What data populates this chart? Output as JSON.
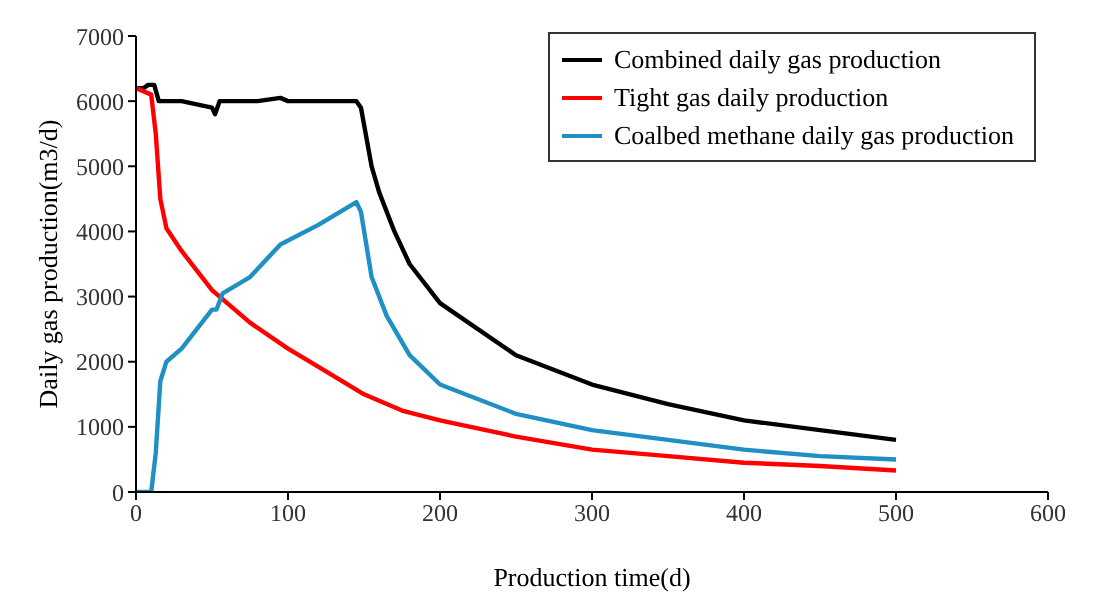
{
  "chart_data": {
    "type": "line",
    "xlabel": "Production time(d)",
    "ylabel": "Daily gas production(m3/d)",
    "xlim": [
      0,
      600
    ],
    "xticks": [
      0,
      100,
      200,
      300,
      400,
      500,
      600
    ],
    "ylim": [
      0,
      7000
    ],
    "yticks": [
      0,
      1000,
      2000,
      3000,
      4000,
      5000,
      6000,
      7000
    ],
    "grid": false,
    "legend": "top right",
    "marker": "none",
    "line_style": "solid",
    "series": [
      {
        "name": "Combined daily gas production",
        "color": "#000000",
        "x": [
          0,
          5,
          8,
          12,
          15,
          30,
          50,
          52,
          55,
          80,
          95,
          100,
          145,
          148,
          155,
          160,
          170,
          180,
          200,
          250,
          300,
          350,
          400,
          450,
          500
        ],
        "values": [
          6200,
          6200,
          6250,
          6250,
          6000,
          6000,
          5900,
          5800,
          6000,
          6000,
          6050,
          6000,
          6000,
          5900,
          5000,
          4600,
          4000,
          3500,
          2900,
          2100,
          1650,
          1350,
          1100,
          950,
          800
        ]
      },
      {
        "name": "Tight gas daily production",
        "color": "#ff0000",
        "x": [
          0,
          10,
          13,
          16,
          20,
          30,
          50,
          75,
          100,
          125,
          150,
          175,
          200,
          250,
          300,
          350,
          400,
          450,
          500
        ],
        "values": [
          6200,
          6100,
          5500,
          4500,
          4050,
          3700,
          3100,
          2600,
          2200,
          1850,
          1500,
          1250,
          1100,
          850,
          650,
          550,
          450,
          400,
          330
        ]
      },
      {
        "name": "Coalbed methane daily gas production",
        "color": "#1f8fc4",
        "x": [
          0,
          10,
          13,
          16,
          20,
          30,
          50,
          53,
          57,
          75,
          95,
          120,
          145,
          148,
          155,
          165,
          180,
          200,
          250,
          300,
          350,
          400,
          450,
          500
        ],
        "values": [
          0,
          0,
          600,
          1700,
          2000,
          2200,
          2800,
          2800,
          3050,
          3300,
          3800,
          4100,
          4450,
          4300,
          3300,
          2700,
          2100,
          1650,
          1200,
          950,
          800,
          650,
          550,
          500
        ]
      }
    ]
  }
}
